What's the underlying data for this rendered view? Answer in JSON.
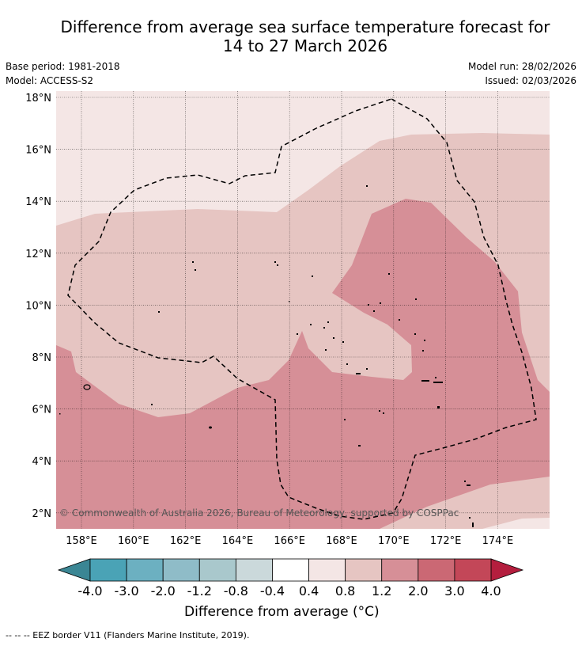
{
  "title": {
    "line1": "Difference from average sea surface temperature forecast for",
    "line2": "14 to 27 March 2026"
  },
  "meta": {
    "base_period": "Base period: 1981-2018",
    "model": "Model: ACCESS-S2",
    "model_run": "Model run: 28/02/2026",
    "issued": "Issued: 02/03/2026"
  },
  "map": {
    "lat_labels": [
      "18°N",
      "16°N",
      "14°N",
      "12°N",
      "10°N",
      "8°N",
      "6°N",
      "4°N",
      "2°N"
    ],
    "lon_labels": [
      "158°E",
      "160°E",
      "162°E",
      "164°E",
      "166°E",
      "168°E",
      "170°E",
      "172°E",
      "174°E"
    ],
    "copyright": "© Commonwealth of Australia 2026, Bureau of Meteorology, supported by COSPPac"
  },
  "colorbar": {
    "ticks": [
      "-4.0",
      "-3.0",
      "-2.0",
      "-1.2",
      "-0.8",
      "-0.4",
      "0.4",
      "0.8",
      "1.2",
      "2.0",
      "3.0",
      "4.0"
    ],
    "colors": [
      "#4aa3b6",
      "#6cb0c1",
      "#8fbcc8",
      "#a9c8cc",
      "#cbd9db",
      "#ffffff",
      "#f4e6e5",
      "#e6c5c2",
      "#d68f97",
      "#cb6874",
      "#c34758"
    ],
    "under_color": "#3b8694",
    "over_color": "#b41e3e",
    "label": "Difference from average (°C)"
  },
  "legend": {
    "eez": "--  --  -- EEZ border V11 (Flanders Marine Institute, 2019)."
  }
}
